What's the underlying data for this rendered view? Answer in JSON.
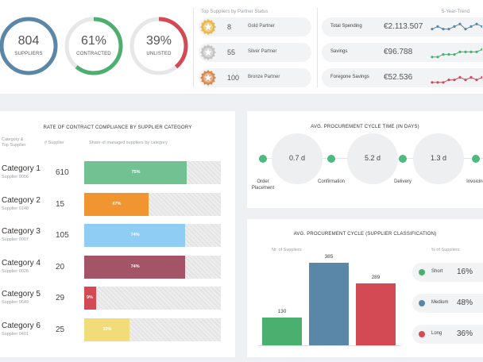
{
  "kpis": [
    {
      "value": "804",
      "label": "SUPPLIERS",
      "color": "#5a87a8",
      "fraction": 1.0
    },
    {
      "value": "61%",
      "label": "CONTRACTED",
      "color": "#4bb06f",
      "fraction": 0.61
    },
    {
      "value": "39%",
      "label": "UNLISTED",
      "color": "#d34a55",
      "fraction": 0.39
    }
  ],
  "partners": {
    "title": "Top Suppliers by Partner Status",
    "rows": [
      {
        "count": "8",
        "label": "Gold Partner",
        "color": "#e8b64a",
        "icon": "gold-medal-icon"
      },
      {
        "count": "55",
        "label": "Silver Partner",
        "color": "#c4c4c4",
        "icon": "silver-medal-icon"
      },
      {
        "count": "100",
        "label": "Bronze Partner",
        "color": "#d98a53",
        "icon": "bronze-medal-icon"
      }
    ]
  },
  "finance": {
    "trend_title": "5-Year-Trend",
    "rows": [
      {
        "label": "Total Spending",
        "value": "€2.113.507",
        "color": "#5a87a8",
        "trend": [
          3,
          2,
          3,
          3,
          2,
          1,
          3,
          2,
          1,
          2
        ]
      },
      {
        "label": "Savings",
        "value": "€96.788",
        "color": "#4bb06f",
        "trend": [
          4,
          4,
          3,
          3,
          3,
          2,
          2,
          2,
          2,
          1
        ]
      },
      {
        "label": "Foregone Savings",
        "value": "€52.536",
        "color": "#d34a55",
        "trend": [
          4,
          4,
          4,
          3,
          3,
          2,
          3,
          2,
          3,
          2
        ]
      }
    ]
  },
  "compliance": {
    "title": "RATE OF CONTRACT COMPLIANCE BY SUPPLIER CATEGORY",
    "col_category": "Category &\nTop Supplier",
    "col_num": "# Supplier",
    "col_share": "Share of managed suppliers by category",
    "rows": [
      {
        "name": "Category 1",
        "supplier": "Supplier 0056",
        "count": "610",
        "pct": 0.75,
        "pct_label": "75%",
        "color": "#72c193"
      },
      {
        "name": "Category 2",
        "supplier": "Supplier 0148",
        "count": "15",
        "pct": 0.47,
        "pct_label": "47%",
        "color": "#f0952f"
      },
      {
        "name": "Category 3",
        "supplier": "Supplier 0007",
        "count": "105",
        "pct": 0.74,
        "pct_label": "74%",
        "color": "#8fcdf5"
      },
      {
        "name": "Category 4",
        "supplier": "Supplier 0026",
        "count": "20",
        "pct": 0.74,
        "pct_label": "74%",
        "color": "#a35467"
      },
      {
        "name": "Category 5",
        "supplier": "Supplier 0649",
        "count": "29",
        "pct": 0.09,
        "pct_label": "9%",
        "color": "#d34a55"
      },
      {
        "name": "Category 6",
        "supplier": "Supplier 0401",
        "count": "25",
        "pct": 0.33,
        "pct_label": "33%",
        "color": "#f2dc7a"
      }
    ]
  },
  "cycle": {
    "title": "AVG. PROCUREMENT CYCLE TIME (IN DAYS)",
    "values": [
      "0.7 d",
      "5.2 d",
      "1.3 d"
    ],
    "stages": [
      "Order\nPlacement",
      "Confirmation",
      "Delivery",
      "Invoicing"
    ]
  },
  "classification": {
    "title": "AVG. PROCUREMENT CYCLE (SUPPLIER CLASSIFICATION)",
    "col_suppliers": "Nr. of Suppliers",
    "col_pct": "% of Suppliers",
    "rows": [
      {
        "label": "Short",
        "count": 130,
        "pct": "16%",
        "color": "#4bb06f"
      },
      {
        "label": "Medium",
        "count": 385,
        "pct": "48%",
        "color": "#5a87a8"
      },
      {
        "label": "Long",
        "count": 289,
        "pct": "36%",
        "color": "#d34a55"
      }
    ]
  }
}
